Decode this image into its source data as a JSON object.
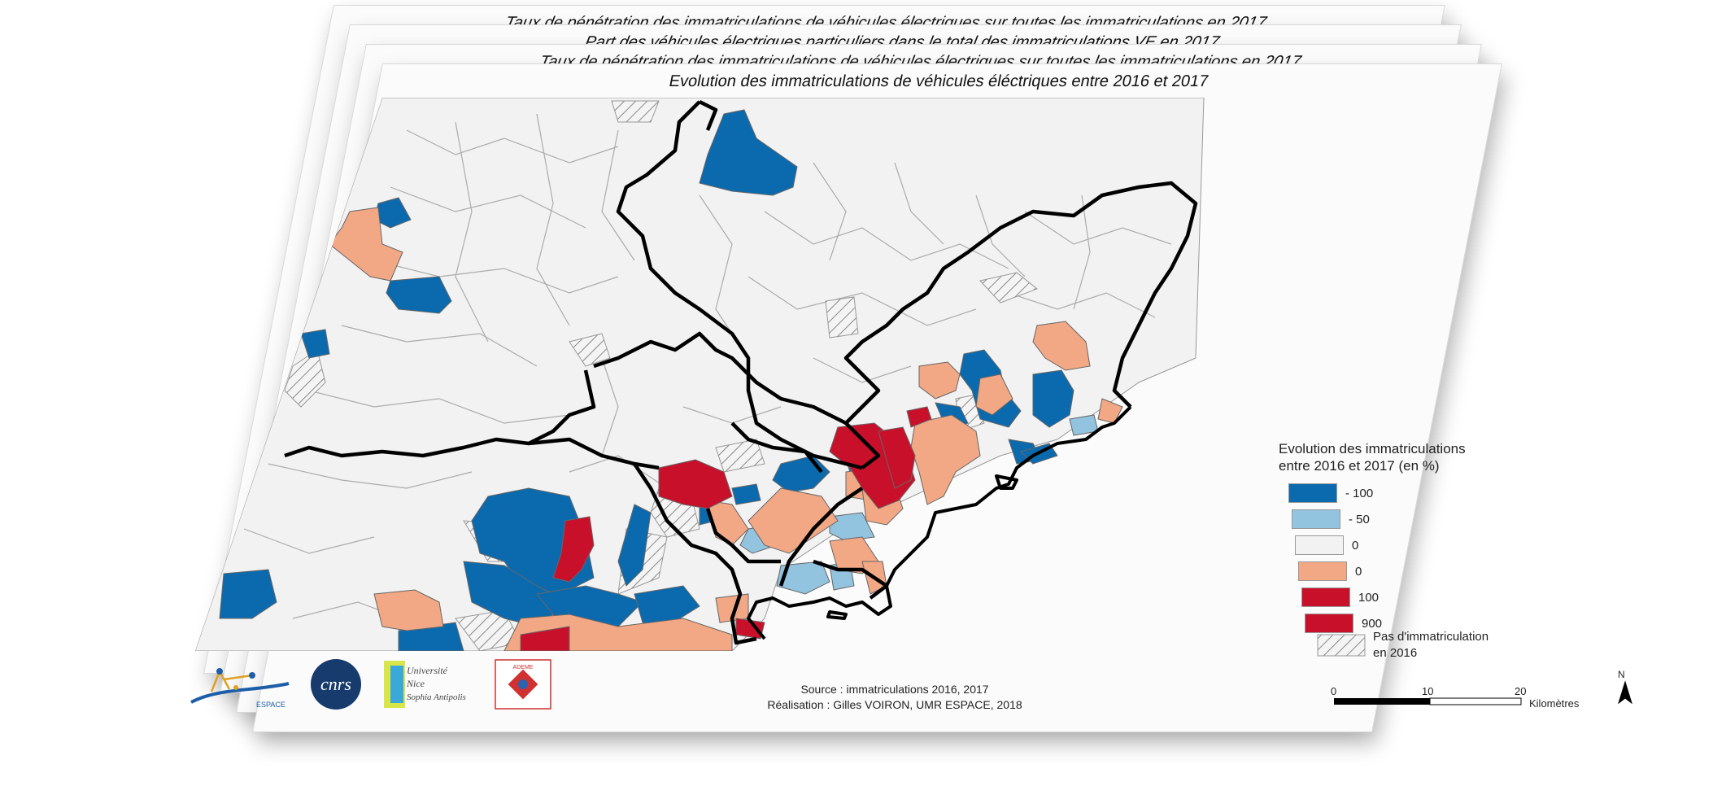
{
  "sheets": [
    {
      "title": "Taux de pénétration des immatriculations de véhicules électriques sur toutes les immatriculations en 2017"
    },
    {
      "title": "Part des véhicules électriques particuliers dans le total des immatriculations VE en 2017"
    },
    {
      "title": "Taux de pénétration des immatriculations de véhicules électriques sur toutes les immatriculations en 2017"
    },
    {
      "title": "Evolution des immatriculations de véhicules éléctriques entre 2016 et 2017"
    }
  ],
  "legend": {
    "title_line1": "Evolution des immatriculations",
    "title_line2": "entre 2016 et 2017 (en %)",
    "classes": [
      {
        "label": "- 100",
        "color": "#0b6aae"
      },
      {
        "label": "- 50",
        "color": "#92c3df"
      },
      {
        "label": "0",
        "color": "#f2f2f2"
      },
      {
        "label": "0",
        "color": "#f2a885"
      },
      {
        "label": "100",
        "color": "#c9102b"
      },
      {
        "label": "900",
        "color": "#c9102b"
      }
    ],
    "hatch_label_line1": "Pas d'immatriculation",
    "hatch_label_line2": "en 2016"
  },
  "source": {
    "line1": "Source : immatriculations 2016, 2017",
    "line2": "Réalisation : Gilles VOIRON, UMR ESPACE, 2018"
  },
  "scale": {
    "ticks": [
      "0",
      "10",
      "20"
    ],
    "unit": "Kilomètres",
    "north": "N"
  },
  "logos": {
    "espace": "ESPACE",
    "cnrs": "cnrs",
    "univ_line1": "Université",
    "univ_line2": "Nice",
    "univ_line3": "Sophia Antipolis",
    "ademe": "ADEME"
  },
  "colors": {
    "blue": "#0b6aae",
    "lightblue": "#92c3df",
    "neutral": "#f2f2f2",
    "salmon": "#f2a885",
    "red": "#c9102b"
  }
}
